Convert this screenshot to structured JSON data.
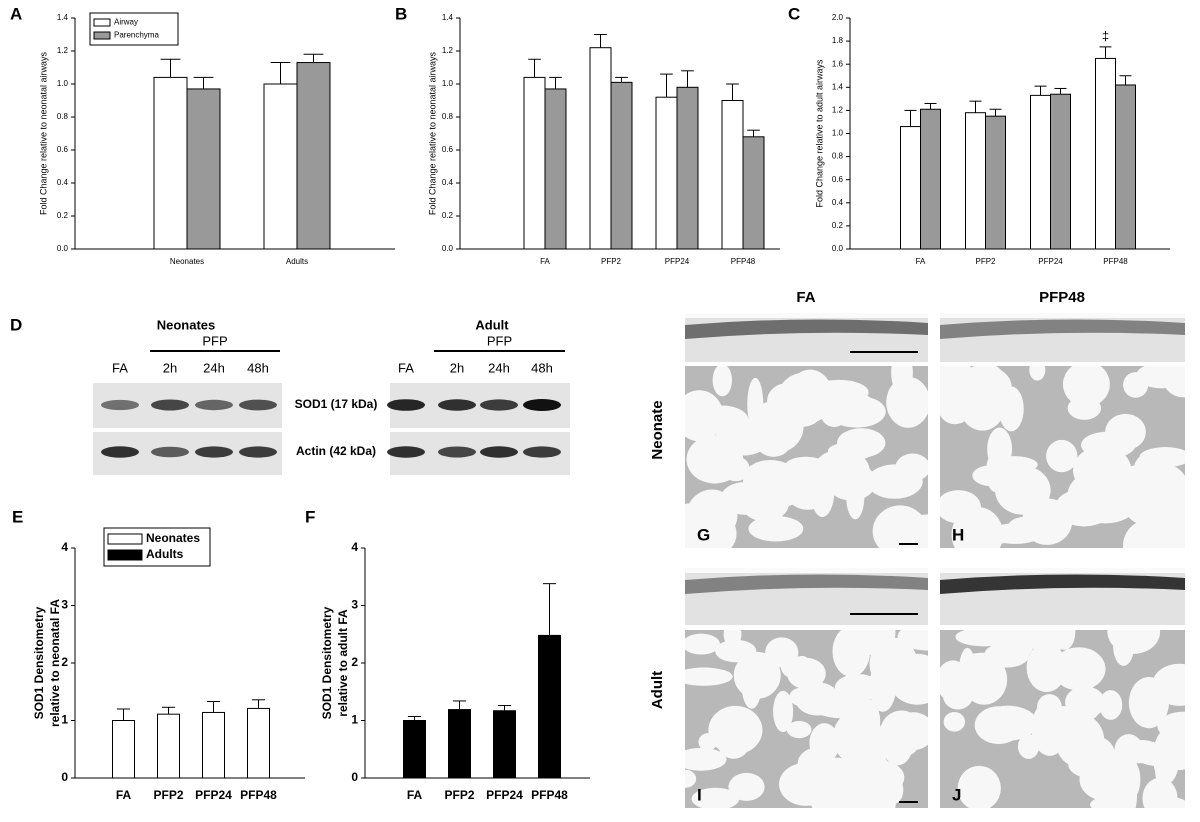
{
  "chart_data": [
    {
      "type": "bar",
      "label": "A",
      "ylabel": "Fold Change relative to neonatal airways",
      "categories": [
        "Neonates",
        "Adults"
      ],
      "series": [
        {
          "name": "Airway",
          "color": "#ffffff",
          "values": [
            1.04,
            1.0
          ],
          "errors": [
            0.11,
            0.13
          ]
        },
        {
          "name": "Parenchyma",
          "color": "#999999",
          "values": [
            0.97,
            1.13
          ],
          "errors": [
            0.07,
            0.05
          ]
        }
      ],
      "ylim": [
        0,
        1.4
      ],
      "yticks": [
        {
          "value": 0,
          "label": "0.0"
        },
        0.2,
        0.4,
        0.6,
        0.8,
        {
          "value": 1,
          "label": "1.0"
        },
        1.2,
        1.4
      ],
      "legend": "upper left"
    },
    {
      "type": "bar",
      "label": "B",
      "ylabel": "Fold Change relative to neonatal airways",
      "categories": [
        "FA",
        "PFP2",
        "PFP24",
        "PFP48"
      ],
      "series": [
        {
          "color": "#ffffff",
          "values": [
            1.04,
            1.22,
            0.92,
            0.9
          ],
          "errors": [
            0.11,
            0.08,
            0.14,
            0.1
          ]
        },
        {
          "color": "#999999",
          "values": [
            0.97,
            1.01,
            0.98,
            0.68
          ],
          "errors": [
            0.07,
            0.03,
            0.1,
            0.04
          ]
        }
      ],
      "ylim": [
        0,
        1.4
      ],
      "yticks": [
        {
          "value": 0,
          "label": "0.0"
        },
        0.2,
        0.4,
        0.6,
        0.8,
        {
          "value": 1,
          "label": "1.0"
        },
        1.2,
        1.4
      ]
    },
    {
      "type": "bar",
      "label": "C",
      "ylabel": "Fold Change relative to adult airways",
      "categories": [
        "FA",
        "PFP2",
        "PFP24",
        "PFP48"
      ],
      "series": [
        {
          "color": "#ffffff",
          "values": [
            1.06,
            1.18,
            1.33,
            1.65
          ],
          "errors": [
            0.14,
            0.1,
            0.08,
            0.1
          ]
        },
        {
          "color": "#999999",
          "values": [
            1.21,
            1.15,
            1.34,
            1.42
          ],
          "errors": [
            0.05,
            0.06,
            0.05,
            0.08
          ]
        }
      ],
      "annotation": "‡",
      "ylim": [
        0,
        2
      ],
      "yticks": [
        {
          "value": 0,
          "label": "0.0"
        },
        0.2,
        0.4,
        0.6,
        0.8,
        {
          "value": 1,
          "label": "1.0"
        },
        1.2,
        1.4,
        1.6,
        1.8,
        {
          "value": 2,
          "label": "2.0"
        }
      ]
    },
    {
      "type": "bar",
      "label": "E",
      "ylabel": [
        "SOD1 Densitometry",
        "relative to neonatal FA"
      ],
      "categories": [
        "FA",
        "PFP2",
        "PFP24",
        "PFP48"
      ],
      "series": [
        {
          "name": "Neonates",
          "color": "#ffffff",
          "values": [
            1.0,
            1.11,
            1.14,
            1.21
          ],
          "errors": [
            0.2,
            0.12,
            0.19,
            0.15
          ]
        }
      ],
      "ylim": [
        0,
        4
      ],
      "yticks": [
        0,
        1,
        2,
        3,
        4
      ],
      "legend": "upper left"
    },
    {
      "type": "bar",
      "label": "F",
      "ylabel": [
        "SOD1 Densitometry",
        "relative to adult FA"
      ],
      "categories": [
        "FA",
        "PFP2",
        "PFP24",
        "PFP48"
      ],
      "series": [
        {
          "name": "Adults",
          "color": "#000000",
          "values": [
            1.0,
            1.19,
            1.17,
            2.48
          ],
          "errors": [
            0.07,
            0.15,
            0.09,
            0.9
          ]
        }
      ],
      "ylim": [
        0,
        4
      ],
      "yticks": [
        0,
        1,
        2,
        3,
        4
      ]
    }
  ],
  "blot": {
    "label": "D",
    "groups": [
      {
        "title": "Neonates",
        "treatment": "PFP",
        "lanes": [
          "FA",
          "2h",
          "24h",
          "48h"
        ]
      },
      {
        "title": "Adult",
        "treatment": "PFP",
        "lanes": [
          "FA",
          "2h",
          "24h",
          "48h"
        ]
      }
    ],
    "rows": [
      "SOD1 (17 kDa)",
      "Actin (42 kDa)"
    ]
  },
  "micrographs": {
    "columns": [
      "FA",
      "PFP48"
    ],
    "rows": [
      "Neonate",
      "Adult"
    ],
    "panels": [
      "G",
      "H",
      "I",
      "J"
    ]
  }
}
